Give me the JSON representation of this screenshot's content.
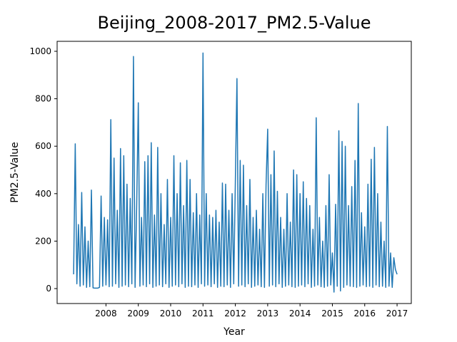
{
  "chart_data": {
    "type": "line",
    "title": "Beijing_2008-2017_PM2.5-Value",
    "xlabel": "Year",
    "ylabel": "PM2.5-Value",
    "x": [
      2007,
      2007.05,
      2007.1,
      2007.15,
      2007.2,
      2007.25,
      2007.3,
      2007.35,
      2007.4,
      2007.45,
      2007.5,
      2007.55,
      2007.6,
      2007.65,
      2007.7,
      2007.75,
      2007.8,
      2007.85,
      2007.9,
      2007.95,
      2008,
      2008.05,
      2008.1,
      2008.15,
      2008.2,
      2008.25,
      2008.3,
      2008.35,
      2008.4,
      2008.45,
      2008.5,
      2008.55,
      2008.6,
      2008.65,
      2008.7,
      2008.75,
      2008.8,
      2008.85,
      2008.9,
      2008.95,
      2009,
      2009.05,
      2009.1,
      2009.15,
      2009.2,
      2009.25,
      2009.3,
      2009.35,
      2009.4,
      2009.45,
      2009.5,
      2009.55,
      2009.6,
      2009.65,
      2009.7,
      2009.75,
      2009.8,
      2009.85,
      2009.9,
      2009.95,
      2010,
      2010.05,
      2010.1,
      2010.15,
      2010.2,
      2010.25,
      2010.3,
      2010.35,
      2010.4,
      2010.45,
      2010.5,
      2010.55,
      2010.6,
      2010.65,
      2010.7,
      2010.75,
      2010.8,
      2010.85,
      2010.9,
      2010.95,
      2011,
      2011.05,
      2011.1,
      2011.15,
      2011.2,
      2011.25,
      2011.3,
      2011.35,
      2011.4,
      2011.45,
      2011.5,
      2011.55,
      2011.6,
      2011.65,
      2011.7,
      2011.75,
      2011.8,
      2011.85,
      2011.9,
      2011.95,
      2012,
      2012.05,
      2012.1,
      2012.15,
      2012.2,
      2012.25,
      2012.3,
      2012.35,
      2012.4,
      2012.45,
      2012.5,
      2012.55,
      2012.6,
      2012.65,
      2012.7,
      2012.75,
      2012.8,
      2012.85,
      2012.9,
      2012.95,
      2013,
      2013.05,
      2013.1,
      2013.15,
      2013.2,
      2013.25,
      2013.3,
      2013.35,
      2013.4,
      2013.45,
      2013.5,
      2013.55,
      2013.6,
      2013.65,
      2013.7,
      2013.75,
      2013.8,
      2013.85,
      2013.9,
      2013.95,
      2014,
      2014.05,
      2014.1,
      2014.15,
      2014.2,
      2014.25,
      2014.3,
      2014.35,
      2014.4,
      2014.45,
      2014.5,
      2014.55,
      2014.6,
      2014.65,
      2014.7,
      2014.75,
      2014.8,
      2014.85,
      2014.9,
      2014.95,
      2015,
      2015.05,
      2015.1,
      2015.15,
      2015.2,
      2015.25,
      2015.3,
      2015.35,
      2015.4,
      2015.45,
      2015.5,
      2015.55,
      2015.6,
      2015.65,
      2015.7,
      2015.75,
      2015.8,
      2015.85,
      2015.9,
      2015.95,
      2016,
      2016.05,
      2016.1,
      2016.15,
      2016.2,
      2016.25,
      2016.3,
      2016.35,
      2016.4,
      2016.45,
      2016.5,
      2016.55,
      2016.6,
      2016.65,
      2016.7,
      2016.75,
      2016.8,
      2016.85,
      2016.9,
      2016.95,
      2017
    ],
    "series": [
      {
        "color": "#1f77b4",
        "values": [
          60,
          610,
          20,
          270,
          10,
          405,
          15,
          260,
          5,
          200,
          8,
          415,
          3,
          2,
          2,
          2,
          5,
          390,
          10,
          300,
          15,
          290,
          8,
          712,
          10,
          550,
          20,
          330,
          5,
          590,
          10,
          560,
          15,
          440,
          8,
          380,
          20,
          978,
          5,
          350,
          783,
          10,
          300,
          15,
          535,
          8,
          560,
          20,
          615,
          5,
          310,
          10,
          595,
          15,
          400,
          8,
          270,
          20,
          460,
          5,
          300,
          10,
          560,
          15,
          400,
          8,
          530,
          20,
          350,
          5,
          540,
          10,
          460,
          8,
          320,
          15,
          400,
          5,
          310,
          20,
          993,
          10,
          400,
          15,
          310,
          8,
          300,
          20,
          330,
          5,
          280,
          10,
          445,
          8,
          440,
          15,
          330,
          5,
          400,
          20,
          450,
          885,
          10,
          540,
          15,
          520,
          8,
          350,
          20,
          460,
          5,
          300,
          10,
          330,
          15,
          250,
          8,
          400,
          5,
          440,
          672,
          10,
          480,
          15,
          580,
          8,
          410,
          20,
          300,
          5,
          250,
          10,
          400,
          15,
          280,
          8,
          500,
          5,
          480,
          10,
          400,
          15,
          450,
          8,
          380,
          20,
          350,
          5,
          250,
          10,
          720,
          15,
          300,
          8,
          200,
          5,
          350,
          10,
          480,
          15,
          150,
          -15,
          355,
          10,
          665,
          -10,
          620,
          5,
          600,
          15,
          350,
          10,
          430,
          8,
          540,
          5,
          780,
          10,
          320,
          15,
          260,
          8,
          440,
          10,
          545,
          5,
          595,
          15,
          400,
          8,
          280,
          10,
          200,
          5,
          683,
          10,
          150,
          5,
          130,
          80,
          60
        ]
      }
    ],
    "xlim": [
      2006.49,
      2017.44
    ],
    "xticks": [
      2008,
      2009,
      2010,
      2011,
      2012,
      2013,
      2014,
      2015,
      2016,
      2017
    ],
    "ylim": [
      -63,
      1042
    ],
    "yticks": [
      0,
      200,
      400,
      600,
      800,
      1000
    ]
  }
}
